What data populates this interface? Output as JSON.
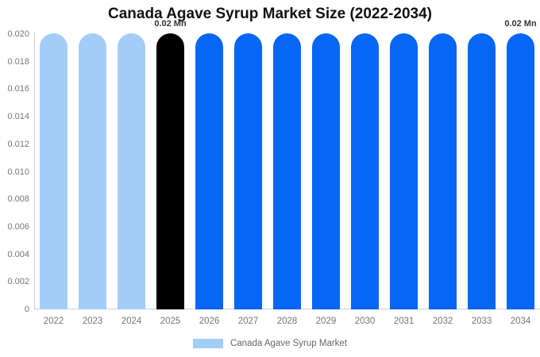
{
  "chart_data": {
    "type": "bar",
    "title": "Canada Agave Syrup Market Size (2022-2034)",
    "unit": "Mn",
    "categories": [
      "2022",
      "2023",
      "2024",
      "2025",
      "2026",
      "2027",
      "2028",
      "2029",
      "2030",
      "2031",
      "2032",
      "2033",
      "2034"
    ],
    "values": [
      0.02,
      0.02,
      0.02,
      0.02,
      0.02,
      0.02,
      0.02,
      0.02,
      0.02,
      0.02,
      0.02,
      0.02,
      0.02
    ],
    "bar_styles": [
      "historical",
      "historical",
      "historical",
      "current",
      "forecast",
      "forecast",
      "forecast",
      "forecast",
      "forecast",
      "forecast",
      "forecast",
      "forecast",
      "forecast"
    ],
    "colors": {
      "historical": "#A3CDF8",
      "current": "#000000",
      "forecast": "#0666F5"
    },
    "data_labels": [
      {
        "category": "2025",
        "text": "0.02 Mn"
      },
      {
        "category": "2034",
        "text": "0.02 Mn"
      }
    ],
    "y_ticks": [
      0.02,
      0.018,
      0.016,
      0.014,
      0.012,
      0.01,
      0.008,
      0.006,
      0.004,
      0.002,
      0
    ],
    "y_tick_labels": [
      "0.020",
      "0.018",
      "0.016",
      "0.014",
      "0.012",
      "0.010",
      "0.008",
      "0.006",
      "0.004",
      "0.002",
      "0"
    ],
    "ylim": [
      0,
      0.02
    ],
    "grid": false,
    "legend": {
      "position": "bottom",
      "items": [
        {
          "label": "Canada Agave Syrup Market",
          "color": "#A3CDF8"
        }
      ]
    },
    "axis": {
      "line_color": "#cccccc",
      "tick_text_color": "#757575"
    }
  }
}
